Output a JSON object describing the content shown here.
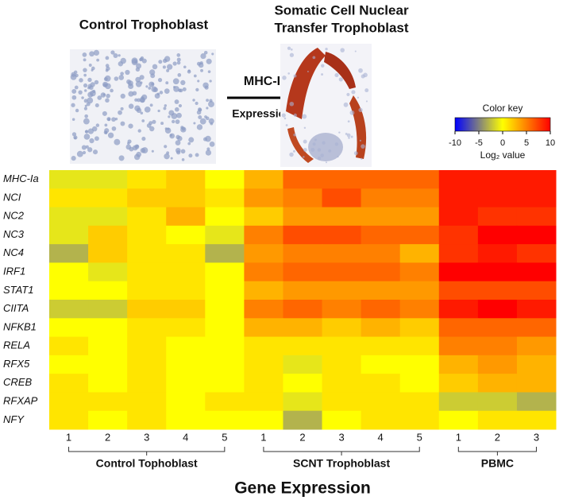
{
  "chart_data": {
    "type": "heatmap",
    "left_image_title": "Control Trophoblast",
    "right_image_title": [
      "Somatic Cell Nuclear",
      "Transfer Trophoblast"
    ],
    "arrow_label": [
      "MHC-I",
      "Expression"
    ],
    "x_label": "Gene Expression",
    "rows": [
      "MHC-Ia",
      "NCI",
      "NC2",
      "NC3",
      "NC4",
      "IRF1",
      "STAT1",
      "CIITA",
      "NFKB1",
      "RELA",
      "RFX5",
      "CREB",
      "RFXAP",
      "NFY"
    ],
    "groups": [
      {
        "name": "Control Tophoblast",
        "columns": [
          1,
          2,
          3,
          4,
          5
        ]
      },
      {
        "name": "SCNT Trophoblast",
        "columns": [
          1,
          2,
          3,
          4,
          5
        ]
      },
      {
        "name": "PBMC",
        "columns": [
          1,
          2,
          3
        ]
      }
    ],
    "values": [
      [
        -1,
        -1,
        1,
        2,
        0,
        3,
        6,
        6,
        6,
        6,
        9,
        9,
        9
      ],
      [
        1,
        1,
        2,
        2,
        1,
        4,
        5,
        7,
        5,
        5,
        9,
        9,
        9
      ],
      [
        -1,
        -1,
        1,
        3,
        0,
        2,
        4,
        4,
        4,
        4,
        9,
        8,
        8
      ],
      [
        -1,
        2,
        1,
        0,
        -1,
        5,
        7,
        7,
        6,
        6,
        8,
        10,
        10
      ],
      [
        -3,
        2,
        1,
        1,
        -3,
        4,
        5,
        5,
        5,
        3,
        8,
        9,
        8
      ],
      [
        0,
        -1,
        1,
        1,
        0,
        5,
        6,
        6,
        6,
        5,
        10,
        10,
        10
      ],
      [
        0,
        0,
        1,
        1,
        0,
        3,
        4,
        4,
        4,
        4,
        7,
        7,
        7
      ],
      [
        -2,
        -2,
        2,
        2,
        0,
        5,
        6,
        5,
        6,
        5,
        9,
        10,
        9
      ],
      [
        0,
        0,
        1,
        1,
        0,
        3,
        3,
        2,
        3,
        2,
        6,
        6,
        6
      ],
      [
        1,
        0,
        1,
        0,
        0,
        1,
        1,
        1,
        1,
        1,
        5,
        5,
        4
      ],
      [
        0,
        0,
        1,
        0,
        0,
        1,
        -1,
        1,
        0,
        0,
        3,
        4,
        3
      ],
      [
        1,
        0,
        1,
        0,
        0,
        1,
        0,
        1,
        1,
        0,
        2,
        3,
        3
      ],
      [
        1,
        1,
        1,
        0,
        1,
        1,
        -1,
        1,
        1,
        1,
        -2,
        -2,
        -3
      ],
      [
        1,
        0,
        1,
        0,
        0,
        0,
        -3,
        0,
        1,
        1,
        0,
        1,
        1
      ]
    ],
    "colorkey": {
      "title": "Color key",
      "label": "Log₂ value",
      "lim": [
        -10,
        10
      ],
      "ticks": [
        -10,
        -5,
        0,
        5,
        10
      ],
      "colors": [
        "#0000ff",
        "#ffff00",
        "#ff0000"
      ]
    }
  }
}
